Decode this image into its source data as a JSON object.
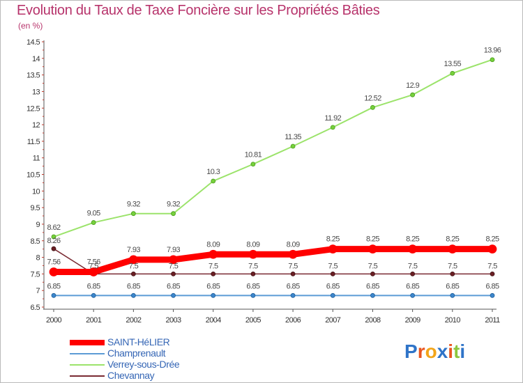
{
  "title": "Evolution du Taux de Taxe Foncière sur les Propriétés Bâties",
  "unit_label": "(en %)",
  "logo": {
    "text": "Proxiti",
    "letter_colors": [
      "#2f74c8",
      "#e9551f",
      "#f2a51a",
      "#2f74c8",
      "#e9551f",
      "#8cc63e",
      "#2f74c8"
    ]
  },
  "chart_data": {
    "type": "line",
    "title": "Evolution du Taux de Taxe Foncière sur les Propriétés Bâties",
    "ylabel": "(en %)",
    "x": [
      "2000",
      "2001",
      "2002",
      "2003",
      "2004",
      "2005",
      "2006",
      "2007",
      "2008",
      "2009",
      "2010",
      "2011"
    ],
    "ylim": [
      6.5,
      14.5
    ],
    "yticks": [
      "6.5",
      "7",
      "7.5",
      "8",
      "8.5",
      "9",
      "9.5",
      "10",
      "10.5",
      "11",
      "11.5",
      "12",
      "12.5",
      "13",
      "13.5",
      "14",
      "14.5"
    ],
    "grid": false,
    "legend_position": "bottom-left",
    "series": [
      {
        "name": "SAINT-HéLIER",
        "color": "#ff0000",
        "values": [
          7.56,
          7.56,
          7.93,
          7.93,
          8.09,
          8.09,
          8.09,
          8.25,
          8.25,
          8.25,
          8.25,
          8.25
        ],
        "labels": [
          "7.56",
          "7.56",
          "7.93",
          "7.93",
          "8.09",
          "8.09",
          "8.09",
          "8.25",
          "8.25",
          "8.25",
          "8.25",
          "8.25"
        ]
      },
      {
        "name": "Champrenault",
        "color": "#5b9bd5",
        "values": [
          6.85,
          6.85,
          6.85,
          6.85,
          6.85,
          6.85,
          6.85,
          6.85,
          6.85,
          6.85,
          6.85,
          6.85
        ],
        "labels": [
          "6.85",
          "6.85",
          "6.85",
          "6.85",
          "6.85",
          "6.85",
          "6.85",
          "6.85",
          "6.85",
          "6.85",
          "6.85",
          "6.85"
        ]
      },
      {
        "name": "Verrey-sous-Drée",
        "color": "#9be36a",
        "values": [
          8.62,
          9.05,
          9.32,
          9.32,
          10.3,
          10.81,
          11.35,
          11.92,
          12.52,
          12.9,
          13.55,
          13.96
        ],
        "labels": [
          "8.62",
          "9.05",
          "9.32",
          "9.32",
          "10.3",
          "10.81",
          "11.35",
          "11.92",
          "12.52",
          "12.9",
          "13.55",
          "13.96"
        ]
      },
      {
        "name": "Chevannay",
        "color": "#7a2a32",
        "values": [
          8.26,
          7.5,
          7.5,
          7.5,
          7.5,
          7.5,
          7.5,
          7.5,
          7.5,
          7.5,
          7.5,
          7.5
        ],
        "labels": [
          "8.26",
          "7.5",
          "7.5",
          "7.5",
          "7.5",
          "7.5",
          "7.5",
          "7.5",
          "7.5",
          "7.5",
          "7.5",
          "7.5"
        ]
      }
    ]
  }
}
